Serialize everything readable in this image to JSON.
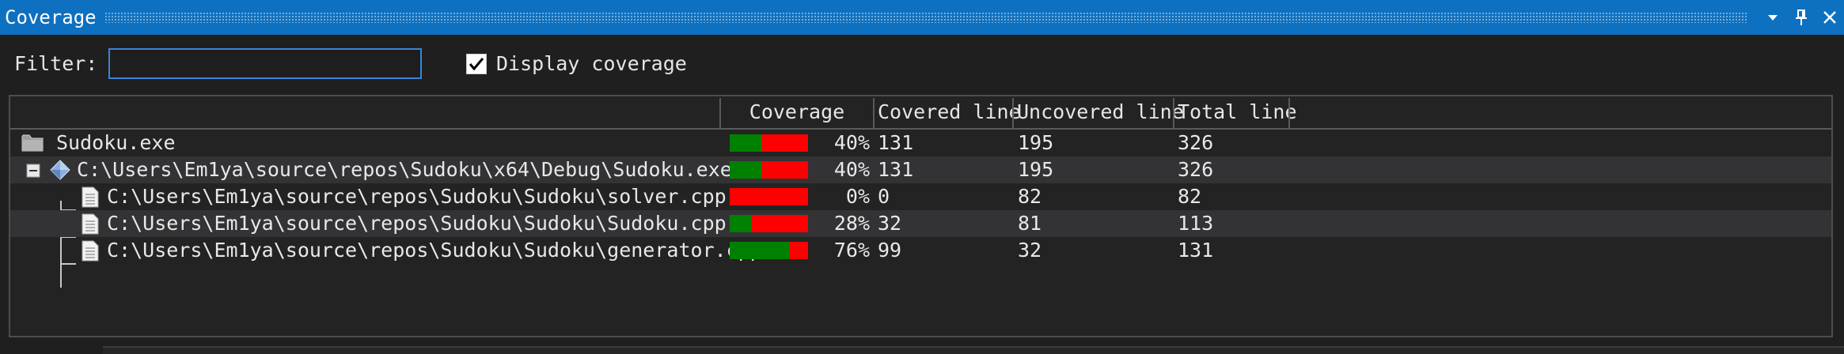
{
  "window": {
    "title": "Coverage",
    "icons": [
      "dropdown-arrow-icon",
      "pin-icon",
      "close-icon"
    ]
  },
  "filter": {
    "label": "Filter:",
    "value": "",
    "placeholder": ""
  },
  "display_coverage": {
    "label": "Display coverage",
    "checked": true
  },
  "table": {
    "columns": [
      "",
      "Coverage",
      "Covered line",
      "Uncovered line",
      "Total line"
    ],
    "rows": [
      {
        "name": "Sudoku.exe",
        "icon": "folder-icon",
        "coverage_fraction": 0.4,
        "pct": "40%",
        "covered": "131",
        "uncovered": "195",
        "total": "326"
      },
      {
        "name": "C:\\Users\\Em1ya\\source\\repos\\Sudoku\\x64\\Debug\\Sudoku.exe",
        "icon": "module-icon",
        "coverage_fraction": 0.4,
        "pct": "40%",
        "covered": "131",
        "uncovered": "195",
        "total": "326"
      },
      {
        "name": "C:\\Users\\Em1ya\\source\\repos\\Sudoku\\Sudoku\\solver.cpp",
        "icon": "file-icon",
        "coverage_fraction": 0.0,
        "pct": "0%",
        "covered": "0",
        "uncovered": "82",
        "total": "82"
      },
      {
        "name": "C:\\Users\\Em1ya\\source\\repos\\Sudoku\\Sudoku\\Sudoku.cpp",
        "icon": "file-icon",
        "coverage_fraction": 0.28,
        "pct": "28%",
        "covered": "32",
        "uncovered": "81",
        "total": "113"
      },
      {
        "name": "C:\\Users\\Em1ya\\source\\repos\\Sudoku\\Sudoku\\generator.cpp",
        "icon": "file-icon",
        "coverage_fraction": 0.76,
        "pct": "76%",
        "covered": "99",
        "uncovered": "32",
        "total": "131"
      }
    ]
  },
  "colors": {
    "covered": "#008000",
    "uncovered": "#ff0000",
    "titlebar": "#0e70c0"
  }
}
